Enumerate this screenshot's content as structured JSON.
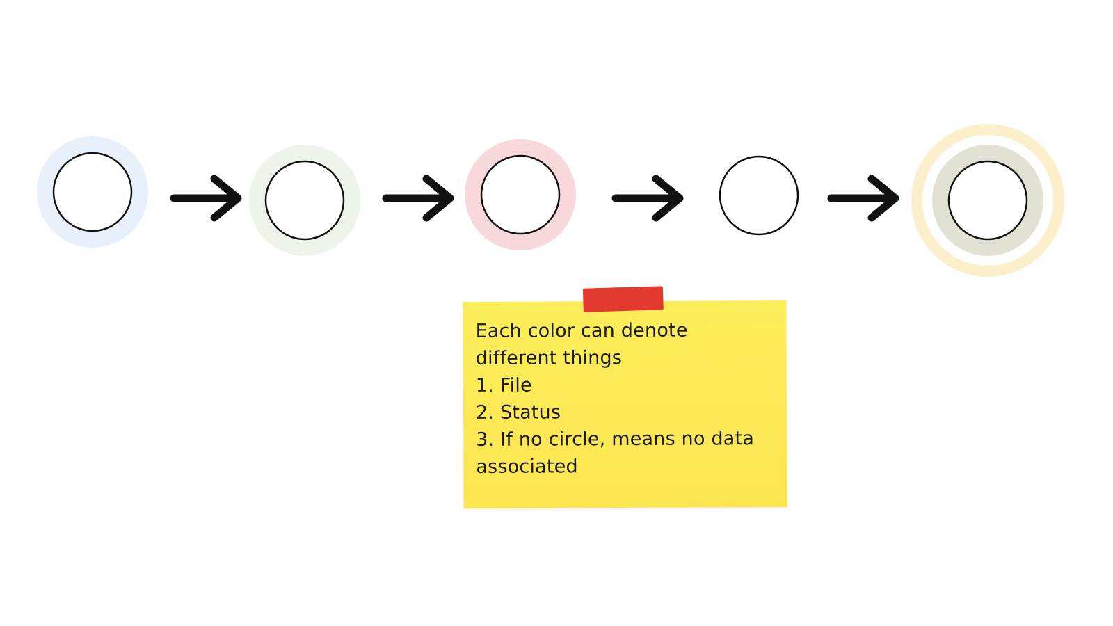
{
  "diagram": {
    "nodes": [
      {
        "id": "node-1",
        "halo_color": "#e8f1fb",
        "has_halo": true
      },
      {
        "id": "node-2",
        "halo_color": "#edf4ea",
        "has_halo": true
      },
      {
        "id": "node-3",
        "halo_color": "#f8d8da",
        "has_halo": true
      },
      {
        "id": "node-4",
        "halo_color": "",
        "has_halo": false
      },
      {
        "id": "node-5",
        "halo_color": "#fcf0cc",
        "inner_halo_color": "#e2e2d4",
        "has_halo": true
      }
    ],
    "arrows": [
      {
        "from": "node-1",
        "to": "node-2"
      },
      {
        "from": "node-2",
        "to": "node-3"
      },
      {
        "from": "node-3",
        "to": "node-4"
      },
      {
        "from": "node-4",
        "to": "node-5"
      }
    ]
  },
  "note": {
    "lines": [
      "Each color can denote",
      "different things",
      "1. File",
      "2. Status",
      "3. If no circle, means no data",
      "associated"
    ],
    "note_color": "#fbe853",
    "tape_color": "#e23a2e"
  }
}
